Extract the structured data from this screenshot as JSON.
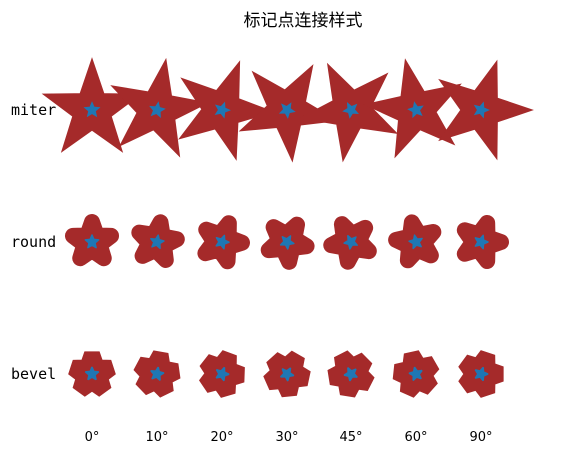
{
  "chart_data": {
    "type": "scatter",
    "title": "标记点连接样式",
    "rows": [
      "miter",
      "round",
      "bevel"
    ],
    "columns": [
      "0°",
      "10°",
      "20°",
      "30°",
      "45°",
      "60°",
      "90°"
    ],
    "rotation_degrees": [
      0,
      10,
      20,
      30,
      45,
      60,
      90
    ],
    "marker": "5-point star",
    "colors": {
      "stroke": "#a52a2a",
      "fill": "#1f77b4",
      "background": "#ffffff"
    },
    "grid": false,
    "axes_visible": false
  }
}
